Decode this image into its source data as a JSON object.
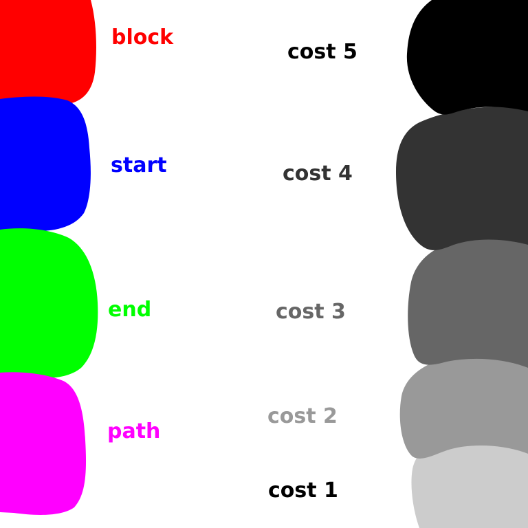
{
  "legend_left": [
    {
      "label": "block",
      "color": "#ff0000"
    },
    {
      "label": "start",
      "color": "#0000ff"
    },
    {
      "label": "end",
      "color": "#00ff00"
    },
    {
      "label": "path",
      "color": "#ff00ff"
    }
  ],
  "legend_right": [
    {
      "label": "cost 5",
      "swatch_color": "#000000",
      "text_color": "#000000"
    },
    {
      "label": "cost 4",
      "swatch_color": "#333333",
      "text_color": "#333333"
    },
    {
      "label": "cost 3",
      "swatch_color": "#666666",
      "text_color": "#666666"
    },
    {
      "label": "cost 2",
      "swatch_color": "#999999",
      "text_color": "#999999"
    },
    {
      "label": "cost 1",
      "swatch_color": "#cccccc",
      "text_color": "#000000"
    }
  ]
}
